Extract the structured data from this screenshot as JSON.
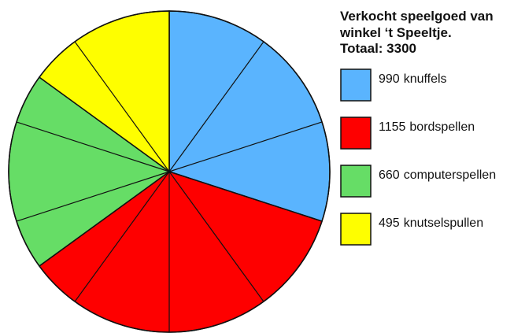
{
  "chart_data": {
    "type": "pie",
    "title": "Verkocht speelgoed van winkel ‘t Speeltje.",
    "subtitle": "Totaal: 3300",
    "categories": [
      "knuffels",
      "bordspellen",
      "computerspellen",
      "knutselspullen"
    ],
    "values": [
      990,
      1155,
      660,
      495
    ],
    "colors": [
      "#5ab4fe",
      "#fe0000",
      "#66dd66",
      "#fefe00"
    ],
    "legend": "right"
  }
}
